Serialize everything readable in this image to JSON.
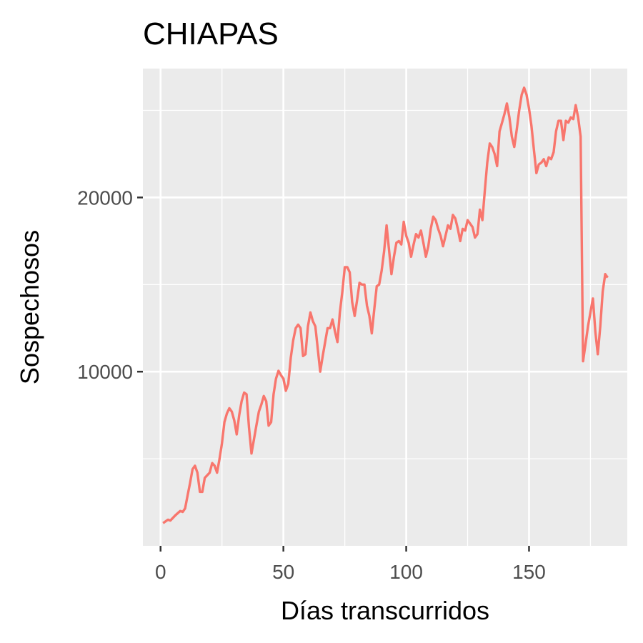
{
  "chart_data": {
    "type": "line",
    "title": "CHIAPAS",
    "xlabel": "Días transcurridos",
    "ylabel": "Sospechosos",
    "xlim": [
      -7.2,
      190
    ],
    "ylim": [
      0,
      27400
    ],
    "x_ticks": [
      0,
      50,
      100,
      150
    ],
    "x_tick_labels": [
      "0",
      "50",
      "100",
      "150"
    ],
    "y_ticks": [
      10000,
      20000
    ],
    "y_tick_labels": [
      "10000",
      "20000"
    ],
    "grid": true,
    "series": [
      {
        "color": "#F8766D",
        "points": [
          [
            1,
            1300
          ],
          [
            3,
            1500
          ],
          [
            4,
            1450
          ],
          [
            6,
            1750
          ],
          [
            8,
            2000
          ],
          [
            9,
            1950
          ],
          [
            10,
            2150
          ],
          [
            11,
            2900
          ],
          [
            12,
            3600
          ],
          [
            13,
            4400
          ],
          [
            14,
            4600
          ],
          [
            15,
            4200
          ],
          [
            16,
            3100
          ],
          [
            17,
            3100
          ],
          [
            18,
            3900
          ],
          [
            20,
            4200
          ],
          [
            21,
            4750
          ],
          [
            22,
            4600
          ],
          [
            23,
            4200
          ],
          [
            24,
            5000
          ],
          [
            25,
            5900
          ],
          [
            26,
            7100
          ],
          [
            27,
            7600
          ],
          [
            28,
            7900
          ],
          [
            29,
            7700
          ],
          [
            30,
            7200
          ],
          [
            31,
            6400
          ],
          [
            32,
            7500
          ],
          [
            33,
            8300
          ],
          [
            34,
            8800
          ],
          [
            35,
            8700
          ],
          [
            36,
            6800
          ],
          [
            37,
            5300
          ],
          [
            38,
            6100
          ],
          [
            39,
            6900
          ],
          [
            40,
            7700
          ],
          [
            41,
            8100
          ],
          [
            42,
            8600
          ],
          [
            43,
            8300
          ],
          [
            44,
            6900
          ],
          [
            45,
            7100
          ],
          [
            46,
            8700
          ],
          [
            47,
            9600
          ],
          [
            48,
            10050
          ],
          [
            49,
            9800
          ],
          [
            50,
            9600
          ],
          [
            51,
            8900
          ],
          [
            52,
            9300
          ],
          [
            53,
            10800
          ],
          [
            54,
            11800
          ],
          [
            55,
            12500
          ],
          [
            56,
            12700
          ],
          [
            57,
            12500
          ],
          [
            58,
            10900
          ],
          [
            59,
            11000
          ],
          [
            60,
            12600
          ],
          [
            61,
            13400
          ],
          [
            62,
            12900
          ],
          [
            63,
            12600
          ],
          [
            64,
            11300
          ],
          [
            65,
            10000
          ],
          [
            66,
            10900
          ],
          [
            67,
            11700
          ],
          [
            68,
            12500
          ],
          [
            69,
            12500
          ],
          [
            70,
            13000
          ],
          [
            71,
            12300
          ],
          [
            72,
            11700
          ],
          [
            73,
            13400
          ],
          [
            74,
            14600
          ],
          [
            75,
            16000
          ],
          [
            76,
            16000
          ],
          [
            77,
            15700
          ],
          [
            78,
            14000
          ],
          [
            79,
            13200
          ],
          [
            80,
            14100
          ],
          [
            81,
            15100
          ],
          [
            82,
            15000
          ],
          [
            83,
            15000
          ],
          [
            84,
            13800
          ],
          [
            85,
            13200
          ],
          [
            86,
            12200
          ],
          [
            87,
            13600
          ],
          [
            88,
            14900
          ],
          [
            89,
            15000
          ],
          [
            90,
            15800
          ],
          [
            91,
            16900
          ],
          [
            92,
            18400
          ],
          [
            93,
            17000
          ],
          [
            94,
            15600
          ],
          [
            95,
            16600
          ],
          [
            96,
            17400
          ],
          [
            97,
            17500
          ],
          [
            98,
            17300
          ],
          [
            99,
            18600
          ],
          [
            100,
            17800
          ],
          [
            101,
            17400
          ],
          [
            102,
            16600
          ],
          [
            103,
            17300
          ],
          [
            104,
            17900
          ],
          [
            105,
            17700
          ],
          [
            106,
            18100
          ],
          [
            107,
            17400
          ],
          [
            108,
            16600
          ],
          [
            109,
            17200
          ],
          [
            110,
            18200
          ],
          [
            111,
            18900
          ],
          [
            112,
            18700
          ],
          [
            113,
            18200
          ],
          [
            114,
            17800
          ],
          [
            115,
            17200
          ],
          [
            116,
            17800
          ],
          [
            117,
            18400
          ],
          [
            118,
            18200
          ],
          [
            119,
            19000
          ],
          [
            120,
            18800
          ],
          [
            121,
            18200
          ],
          [
            122,
            17500
          ],
          [
            123,
            18200
          ],
          [
            124,
            18100
          ],
          [
            125,
            18700
          ],
          [
            126,
            18500
          ],
          [
            127,
            18300
          ],
          [
            128,
            17700
          ],
          [
            129,
            17900
          ],
          [
            130,
            19300
          ],
          [
            131,
            18700
          ],
          [
            132,
            20400
          ],
          [
            133,
            22000
          ],
          [
            134,
            23100
          ],
          [
            135,
            22900
          ],
          [
            136,
            22500
          ],
          [
            137,
            21800
          ],
          [
            138,
            23800
          ],
          [
            139,
            24300
          ],
          [
            140,
            24800
          ],
          [
            141,
            25400
          ],
          [
            142,
            24600
          ],
          [
            143,
            23500
          ],
          [
            144,
            22900
          ],
          [
            145,
            23900
          ],
          [
            146,
            25000
          ],
          [
            147,
            25900
          ],
          [
            148,
            26300
          ],
          [
            149,
            25900
          ],
          [
            150,
            25100
          ],
          [
            151,
            24100
          ],
          [
            152,
            22700
          ],
          [
            153,
            21400
          ],
          [
            154,
            21900
          ],
          [
            155,
            22000
          ],
          [
            156,
            22200
          ],
          [
            157,
            21800
          ],
          [
            158,
            22300
          ],
          [
            159,
            22200
          ],
          [
            160,
            22600
          ],
          [
            161,
            23800
          ],
          [
            162,
            24400
          ],
          [
            163,
            24400
          ],
          [
            164,
            23300
          ],
          [
            165,
            24400
          ],
          [
            166,
            24300
          ],
          [
            167,
            24600
          ],
          [
            168,
            24500
          ],
          [
            169,
            25300
          ],
          [
            170,
            24600
          ],
          [
            171,
            23500
          ],
          [
            172,
            10600
          ],
          [
            173,
            11600
          ],
          [
            174,
            12600
          ],
          [
            175,
            13400
          ],
          [
            176,
            14200
          ],
          [
            177,
            12300
          ],
          [
            178,
            11000
          ],
          [
            179,
            12600
          ],
          [
            180,
            14600
          ],
          [
            181,
            15600
          ],
          [
            182,
            15400
          ]
        ]
      }
    ]
  }
}
